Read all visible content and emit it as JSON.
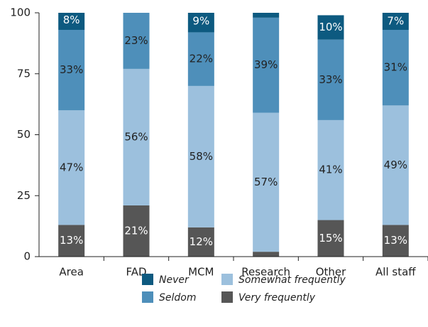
{
  "chart_data": {
    "type": "stacked-bar",
    "categories": [
      "Area",
      "FAD",
      "MCM",
      "Research",
      "Other",
      "All staff"
    ],
    "series": [
      {
        "name": "Never",
        "color": "#0d5a80",
        "values": [
          8,
          0,
          9,
          2.5,
          10,
          7
        ],
        "value_labels": [
          "8%",
          null,
          "9%",
          null,
          "10%",
          "7%"
        ]
      },
      {
        "name": "Seldom",
        "color": "#4e8fba",
        "values": [
          33,
          23,
          22,
          39,
          33,
          31
        ],
        "value_labels": [
          "33%",
          "23%",
          "22%",
          "39%",
          "33%",
          "31%"
        ]
      },
      {
        "name": "Somewhat frequently",
        "color": "#9cc0dd",
        "values": [
          47,
          56,
          58,
          57,
          41,
          49
        ],
        "value_labels": [
          "47%",
          "56%",
          "58%",
          "57%",
          "41%",
          "49%"
        ]
      },
      {
        "name": "Very frequently",
        "color": "#565656",
        "values": [
          13,
          21,
          12,
          2,
          15,
          13
        ],
        "value_labels": [
          "13%",
          "21%",
          "12%",
          null,
          "15%",
          "13%"
        ]
      }
    ],
    "ylim": [
      0,
      100
    ],
    "yticks": [
      0,
      25,
      50,
      75,
      100
    ],
    "grid": false
  }
}
